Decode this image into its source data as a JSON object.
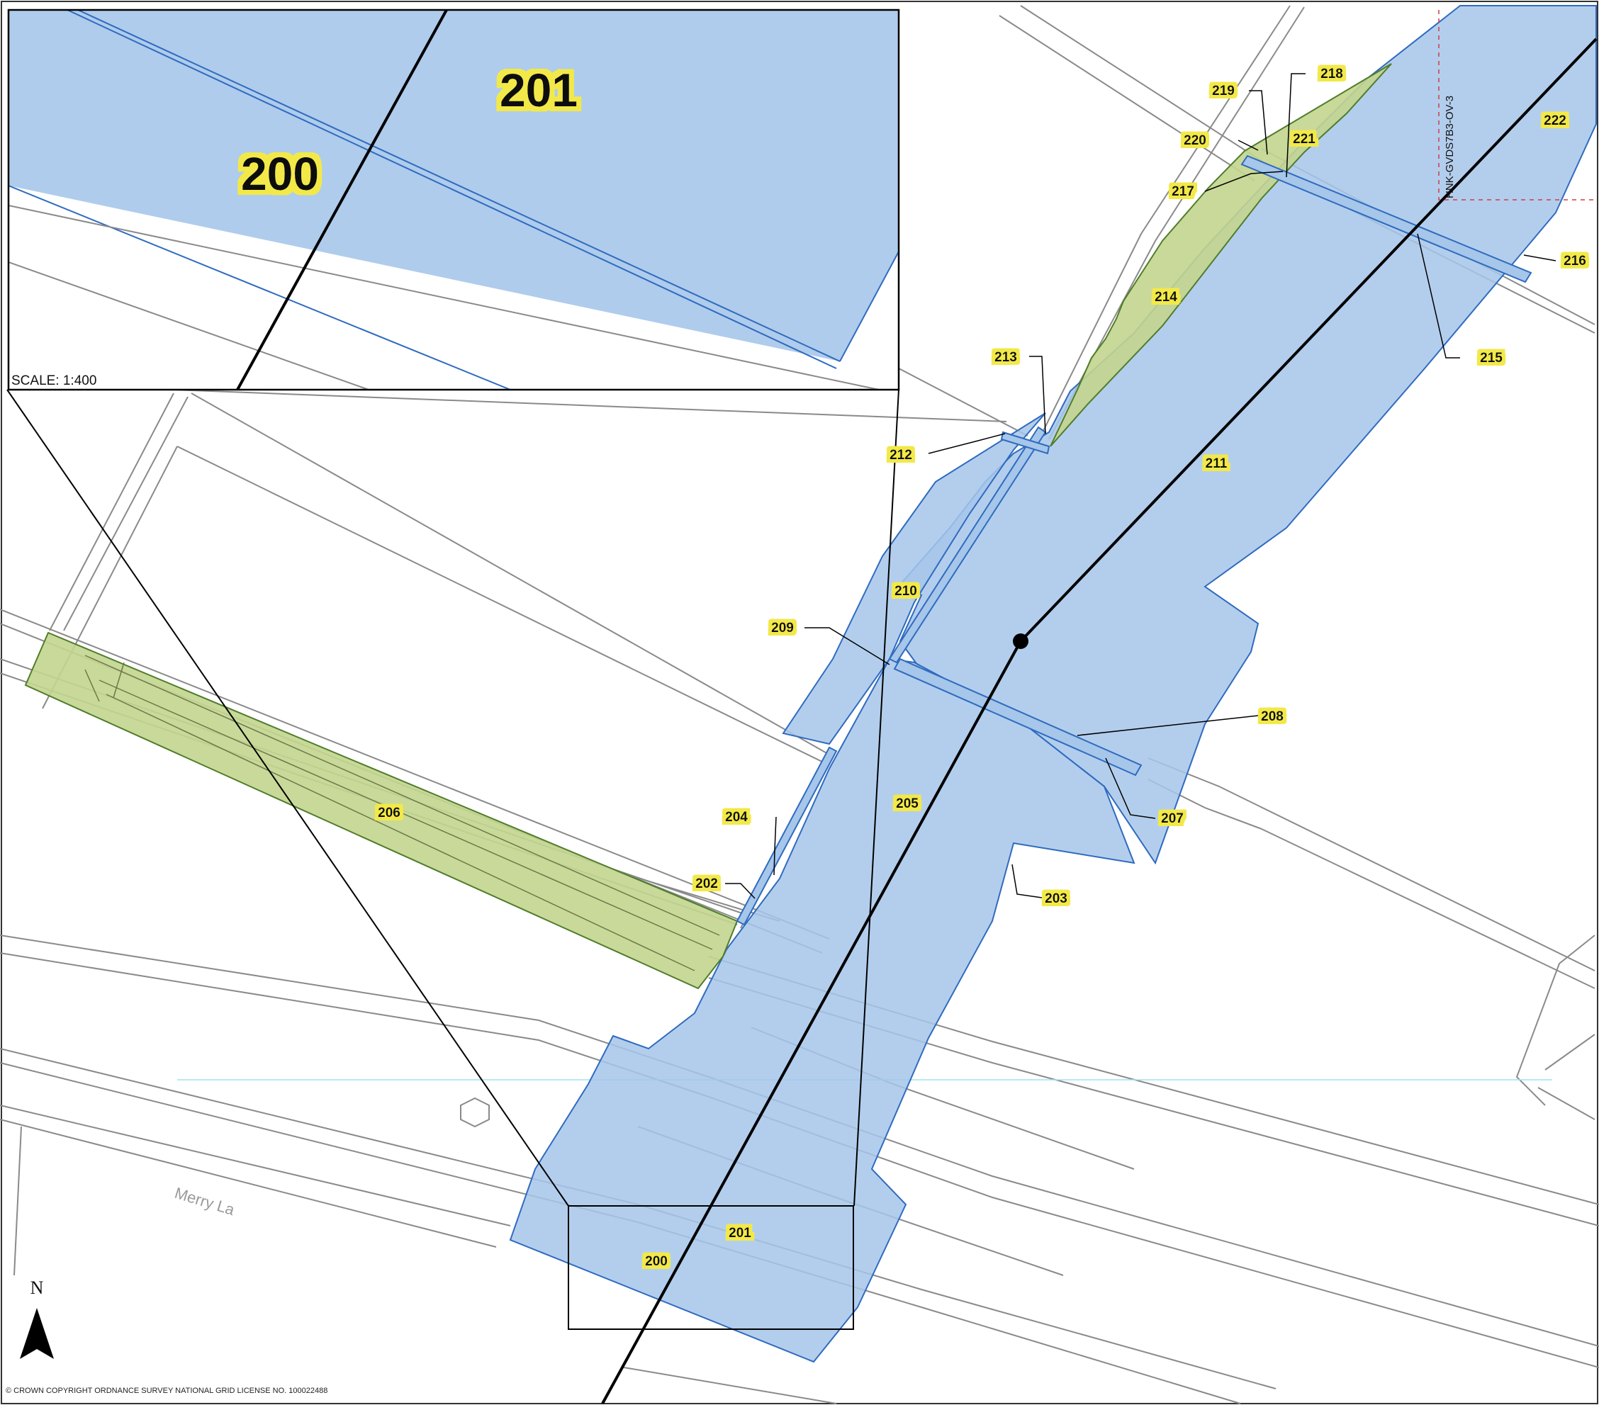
{
  "parcels": {
    "p200": "200",
    "p201": "201",
    "p202": "202",
    "p203": "203",
    "p204": "204",
    "p205": "205",
    "p206": "206",
    "p207": "207",
    "p208": "208",
    "p209": "209",
    "p210": "210",
    "p211": "211",
    "p212": "212",
    "p213": "213",
    "p214": "214",
    "p215": "215",
    "p216": "216",
    "p217": "217",
    "p218": "218",
    "p219": "219",
    "p220": "220",
    "p221": "221",
    "p222": "222"
  },
  "inset": {
    "label_200": "200",
    "label_201": "201",
    "scale": "SCALE:   1:400"
  },
  "street_name": "Merry La",
  "sheet_ref": "HNK-GVDS7B3-OV-3",
  "north_label": "N",
  "copyright": "© CROWN COPYRIGHT ORDNANCE SURVEY NATIONAL GRID LICENSE NO. 100022488",
  "colors": {
    "blue_fill": "#a6c6ea",
    "blue_stroke": "#2f6bbf",
    "green_fill": "#c3d58e",
    "green_stroke": "#4f7d2a",
    "boundary": "#8a8a8a",
    "route": "#000000",
    "label_bg": "#f2e94a"
  }
}
